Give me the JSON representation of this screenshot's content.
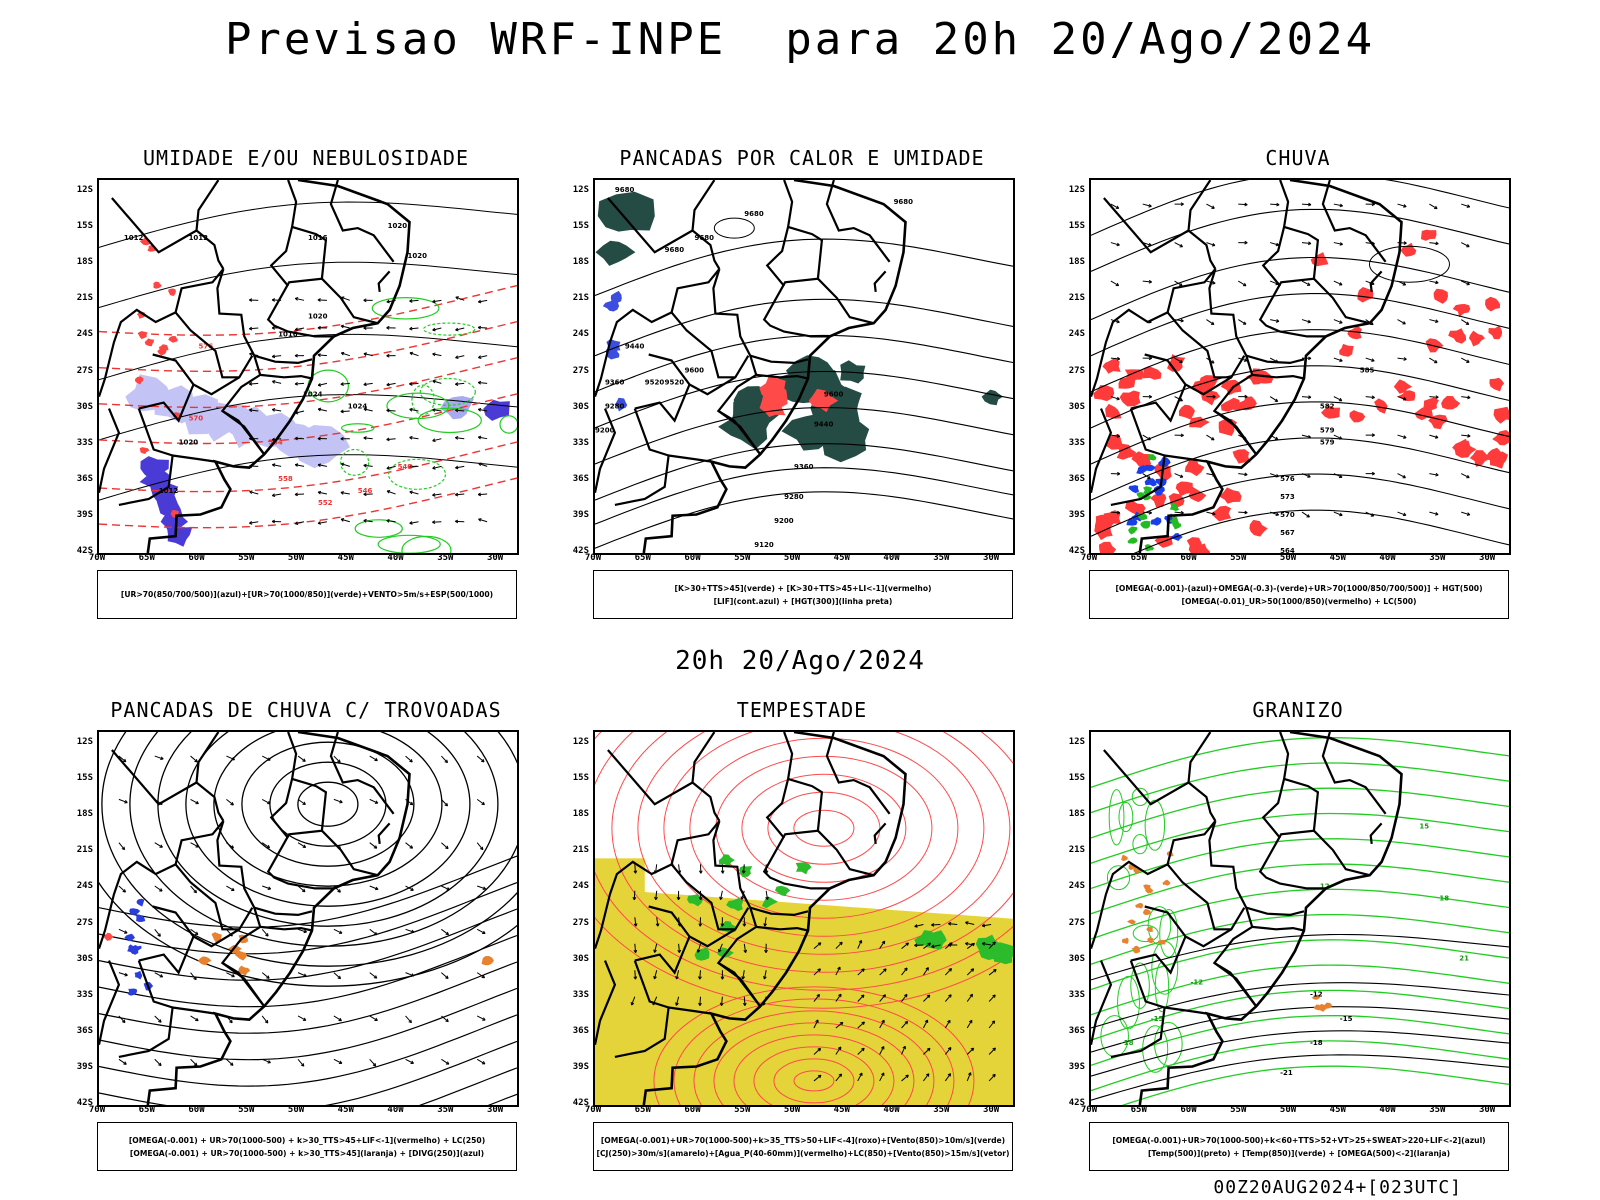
{
  "main_title": "Previsao WRF-INPE  para 20h 20/Ago/2024",
  "mid_title": "20h 20/Ago/2024",
  "footer": "00Z20AUG2024+[023UTC]",
  "lat_ticks": [
    "12S",
    "15S",
    "18S",
    "21S",
    "24S",
    "27S",
    "30S",
    "33S",
    "36S",
    "39S",
    "42S"
  ],
  "lon_ticks": [
    "70W",
    "65W",
    "60W",
    "55W",
    "50W",
    "45W",
    "40W",
    "35W",
    "30W"
  ],
  "colors": {
    "humidity_mid_blue": "#a9aaf0",
    "humidity_high_blue": "#4b3bd6",
    "green_contour": "#22cc22",
    "red_contour": "#ff3333",
    "dark_teal": "#254b45",
    "yellow": "#e4d43a",
    "orange": "#e8822e",
    "blue": "#2a3ee0"
  },
  "panels": [
    {
      "title": "UMIDADE E/OU NEBULOSIDADE",
      "legend": [
        "[UR>70(850/700/500)](azul)+[UR>70(1000/850)](verde)+VENTO>5m/s+ESP(500/1000)"
      ],
      "contour_labels": [
        "1012",
        "1012",
        "1016",
        "1020",
        "1020",
        "1020",
        "1016",
        "1024",
        "1024",
        "1016",
        "1020",
        "1012",
        "576",
        "570",
        "564",
        "558",
        "552",
        "546",
        "540"
      ]
    },
    {
      "title": "PANCADAS POR CALOR E UMIDADE",
      "legend": [
        "[K>30+TTS>45](verde) + [K>30+TTS>45+LI<-1](vermelho)",
        "[LIF](cont.azul) + [HGT(300)](linha preta)"
      ],
      "contour_labels": [
        "9680",
        "9680",
        "9680",
        "9680",
        "9680",
        "9600",
        "9600",
        "9520",
        "9440",
        "9360",
        "9280",
        "9200",
        "9120",
        "9520",
        "9440",
        "9360",
        "9280",
        "9200"
      ]
    },
    {
      "title": "CHUVA",
      "legend": [
        "[OMEGA(-0.001)-(azul)+OMEGA(-0.3)-(verde)+UR>70(1000/850/700/500)] + HGT(500)",
        "[OMEGA(-0.01)_UR>50(1000/850)(vermelho) + LC(500)"
      ],
      "contour_labels": [
        "585",
        "582",
        "579",
        "576",
        "573",
        "570",
        "567",
        "564",
        "579"
      ]
    },
    {
      "title": "PANCADAS DE CHUVA C/ TROVOADAS",
      "legend": [
        "[OMEGA(-0.001) + UR>70(1000-500) + k>30_TTS>45+LIF<-1](vermelho) + LC(250)",
        "[OMEGA(-0.001) + UR>70(1000-500) + k>30_TTS>45](laranja) + [DIVG(250)](azul)"
      ],
      "contour_labels": []
    },
    {
      "title": "TEMPESTADE",
      "legend": [
        "[OMEGA(-0.001)+UR>70(1000-500)+k>35_TTS>50+LIF<-4](roxo)+[Vento(850)>10m/s](verde)",
        "[CJ(250)>30m/s](amarelo)+[Agua_P(40-60mm)](vermelho)+LC(850)+[Vento(850)>15m/s](vetor)"
      ],
      "contour_labels": []
    },
    {
      "title": "GRANIZO",
      "legend": [
        "[OMEGA(-0.001)+UR>70(1000-500)+k<60+TTS>52+VT>25+SWEAT>220+LIF<-2](azul)",
        "[Temp(500)](preto) + [Temp(850)](verde) + [OMEGA(500)<-2](laranja)"
      ],
      "contour_labels": [
        "-12",
        "-15",
        "-18",
        "-21",
        "12",
        "15",
        "18",
        "21",
        "-12",
        "-15",
        "-18"
      ]
    }
  ]
}
